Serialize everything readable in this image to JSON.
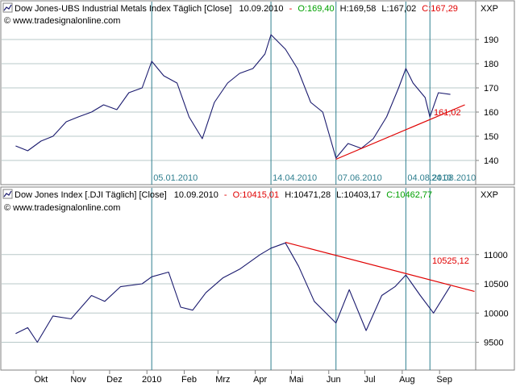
{
  "colors": {
    "background": "#ffffff",
    "frame": "#808080",
    "price_line": "#1a1a6e",
    "trend_line": "#e00000",
    "event_line": "#2f7f8f",
    "grid": "#b8c8c8",
    "open_green": "#00a000",
    "close_red": "#e00000",
    "close_green": "#00a000"
  },
  "top_panel": {
    "header": {
      "title": "Dow Jones-UBS Industrial Metals Index Täglich [Close]",
      "date": "10.09.2010",
      "open": "O:169,40",
      "high": "H:169,58",
      "low": "L:167,02",
      "close": "C:167,29"
    },
    "watermark": "© www.tradesignalonline.com",
    "currency_label": "XXP",
    "trend_label": "161,02",
    "event_labels": [
      "05.01.2010",
      "14.04.2010",
      "07.06.2010",
      "04.08.2010",
      "24.08.2010"
    ]
  },
  "bottom_panel": {
    "header": {
      "title": "Dow Jones Index [.DJI Täglich] [Close]",
      "date": "10.09.2010",
      "open": "O:10415,01",
      "high": "H:10471,28",
      "low": "L:10403,17",
      "close": "C:10462,77"
    },
    "watermark": "© www.tradesignalonline.com",
    "currency_label": "XXP",
    "trend_label": "10525,12"
  },
  "x_axis": {
    "labels": [
      "Okt",
      "Nov",
      "Dez",
      "2010",
      "Feb",
      "Mrz",
      "Apr",
      "Mai",
      "Jun",
      "Jul",
      "Aug",
      "Sep"
    ]
  },
  "chart_data": [
    {
      "type": "line",
      "title": "Dow Jones-UBS Industrial Metals Index Täglich [Close]",
      "xlabel": "",
      "ylabel": "",
      "ylim": [
        131,
        195
      ],
      "y_ticks": [
        140,
        150,
        160,
        170,
        180,
        190
      ],
      "grid": true,
      "x": [
        "2009-09-14",
        "2009-09-24",
        "2009-10-05",
        "2009-10-15",
        "2009-10-26",
        "2009-11-05",
        "2009-11-16",
        "2009-11-26",
        "2009-12-07",
        "2009-12-17",
        "2009-12-28",
        "2010-01-05",
        "2010-01-15",
        "2010-01-26",
        "2010-02-05",
        "2010-02-16",
        "2010-02-26",
        "2010-03-09",
        "2010-03-19",
        "2010-03-30",
        "2010-04-09",
        "2010-04-14",
        "2010-04-26",
        "2010-05-06",
        "2010-05-17",
        "2010-05-27",
        "2010-06-07",
        "2010-06-17",
        "2010-06-28",
        "2010-07-08",
        "2010-07-19",
        "2010-07-29",
        "2010-08-04",
        "2010-08-10",
        "2010-08-20",
        "2010-08-24",
        "2010-08-31",
        "2010-09-10"
      ],
      "series": [
        {
          "values": [
            146,
            144,
            148,
            150,
            156,
            158,
            160,
            163,
            161,
            168,
            170,
            181,
            175,
            172,
            158,
            149,
            164,
            172,
            176,
            178,
            184,
            192,
            186,
            178,
            164,
            160,
            141,
            147,
            145,
            149,
            158,
            170,
            178,
            172,
            166,
            158,
            168,
            167.29
          ]
        }
      ],
      "trend_line": {
        "x": [
          "2010-06-07",
          "2010-09-22"
        ],
        "y": [
          140.5,
          163
        ]
      },
      "event_dates": [
        "2010-01-05",
        "2010-04-14",
        "2010-06-07",
        "2010-08-04",
        "2010-08-24"
      ]
    },
    {
      "type": "line",
      "title": "Dow Jones Index [.DJI Täglich] [Close]",
      "xlabel": "",
      "ylabel": "",
      "ylim": [
        9080,
        11700
      ],
      "y_ticks": [
        9500,
        10000,
        10500,
        11000
      ],
      "grid": true,
      "x": [
        "2009-09-14",
        "2009-09-24",
        "2009-10-02",
        "2009-10-15",
        "2009-10-30",
        "2009-11-16",
        "2009-11-27",
        "2009-12-10",
        "2009-12-28",
        "2010-01-05",
        "2010-01-19",
        "2010-01-29",
        "2010-02-08",
        "2010-02-19",
        "2010-03-05",
        "2010-03-19",
        "2010-04-05",
        "2010-04-14",
        "2010-04-26",
        "2010-05-07",
        "2010-05-20",
        "2010-06-07",
        "2010-06-18",
        "2010-07-02",
        "2010-07-15",
        "2010-07-26",
        "2010-08-04",
        "2010-08-16",
        "2010-08-27",
        "2010-09-10"
      ],
      "series": [
        {
          "values": [
            9650,
            9750,
            9500,
            9950,
            9900,
            10300,
            10200,
            10450,
            10500,
            10620,
            10700,
            10100,
            10050,
            10350,
            10600,
            10750,
            11000,
            11110,
            11200,
            10800,
            10200,
            9830,
            10400,
            9700,
            10300,
            10450,
            10650,
            10300,
            10000,
            10462.77
          ]
        }
      ],
      "trend_line": {
        "x": [
          "2010-04-26",
          "2010-09-30"
        ],
        "y": [
          11210,
          10370
        ]
      },
      "event_dates": [
        "2010-01-05",
        "2010-04-14",
        "2010-06-07",
        "2010-08-04",
        "2010-08-24"
      ]
    }
  ]
}
